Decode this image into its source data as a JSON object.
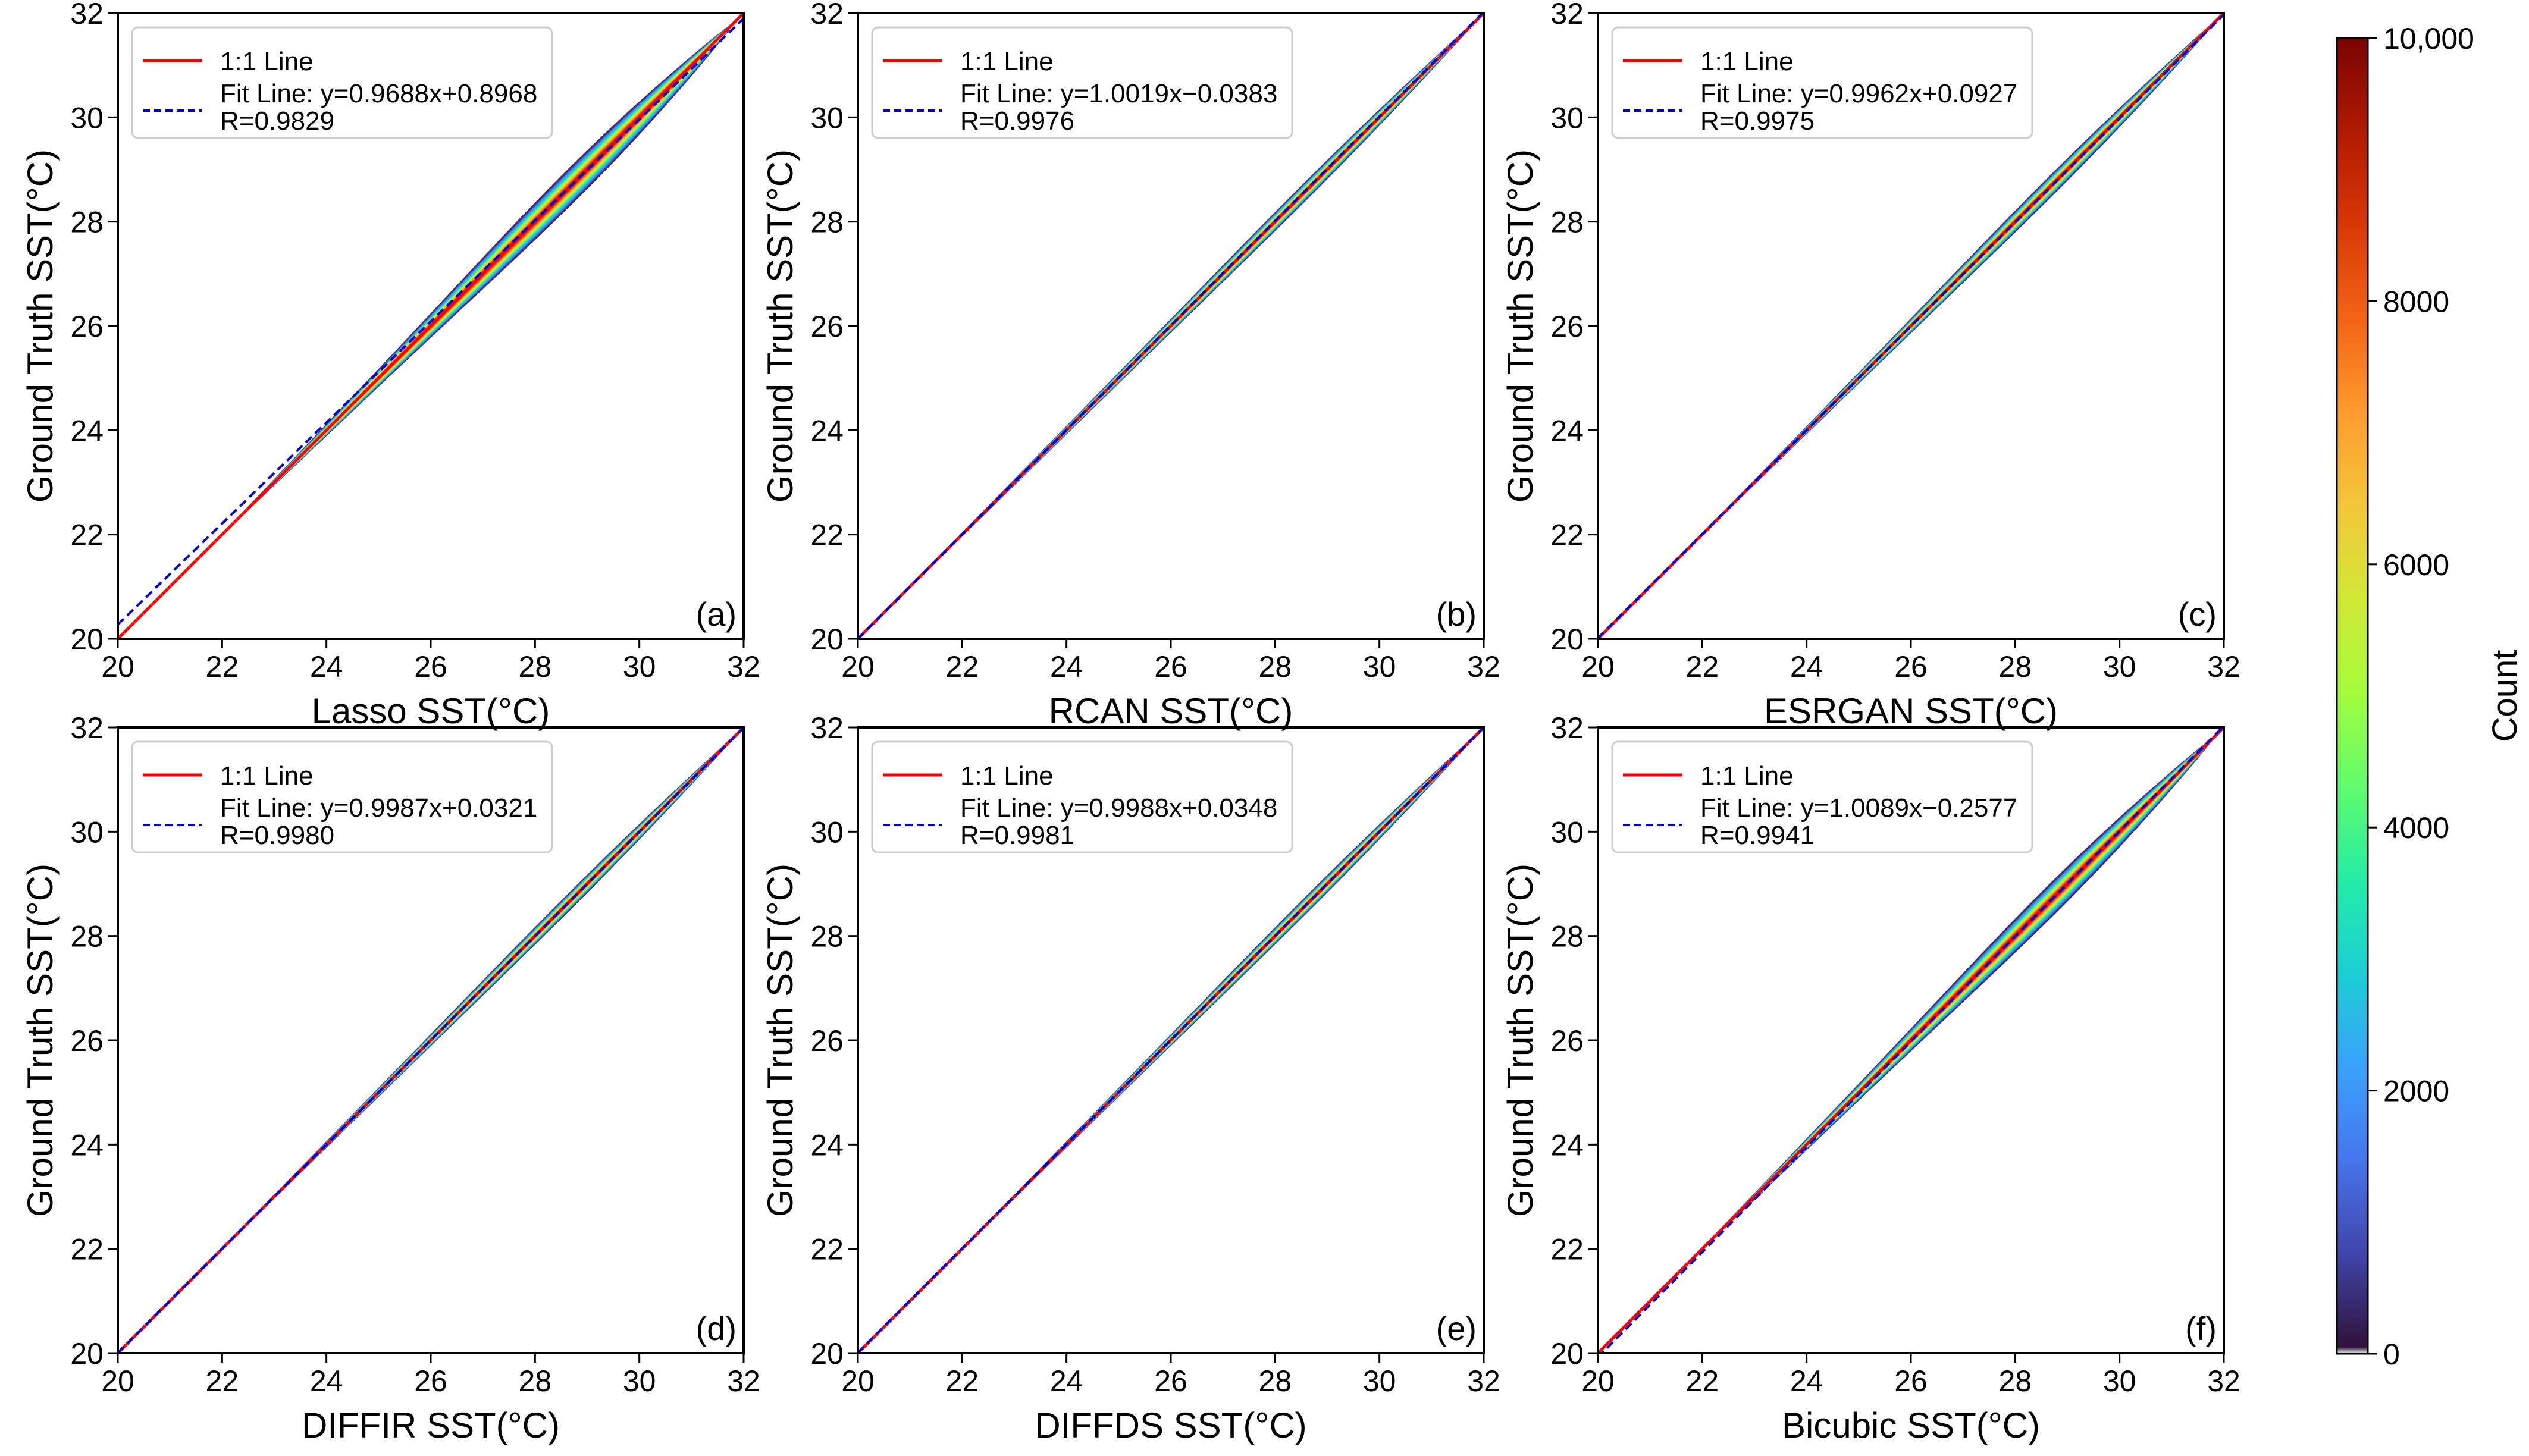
{
  "figure": {
    "colorbar": {
      "label": "Count",
      "min": 0,
      "max": 10000,
      "ticks": [
        {
          "value": 0,
          "label": "0"
        },
        {
          "value": 2000,
          "label": "2000"
        },
        {
          "value": 4000,
          "label": "4000"
        },
        {
          "value": 6000,
          "label": "6000"
        },
        {
          "value": 8000,
          "label": "8000"
        },
        {
          "value": 10000,
          "label": "10,000"
        }
      ],
      "colormap": [
        "#ffffff",
        "#30123b",
        "#4145ab",
        "#4675ed",
        "#39a2fc",
        "#1bcfd4",
        "#24eca6",
        "#61fc6c",
        "#a4fc3b",
        "#d1e834",
        "#f3c63a",
        "#fe9b2d",
        "#f36315",
        "#d93806",
        "#b11901",
        "#7a0402"
      ]
    }
  },
  "chart_data": [
    {
      "type": "heatmap",
      "panel": "(a)",
      "xlabel": "Lasso SST(°C)",
      "ylabel": "Ground Truth SST(°C)",
      "xlim": [
        20,
        32
      ],
      "ylim": [
        20,
        32
      ],
      "xticks": [
        20,
        22,
        24,
        26,
        28,
        30,
        32
      ],
      "yticks": [
        20,
        22,
        24,
        26,
        28,
        30,
        32
      ],
      "legend_position": "upper-left",
      "legend": {
        "line_1to1": "1:1 Line",
        "fit": "Fit Line: y=0.9688x+0.8968",
        "r": "R=0.9829"
      },
      "fit_slope": 0.9688,
      "fit_intercept": 0.8968,
      "density": {
        "x_range": [
          22,
          31.7
        ],
        "max_halfwidth": 0.55,
        "peak_x": 29.6
      }
    },
    {
      "type": "heatmap",
      "panel": "(b)",
      "xlabel": "RCAN SST(°C)",
      "ylabel": "Ground Truth SST(°C)",
      "xlim": [
        20,
        32
      ],
      "ylim": [
        20,
        32
      ],
      "xticks": [
        20,
        22,
        24,
        26,
        28,
        30,
        32
      ],
      "yticks": [
        20,
        22,
        24,
        26,
        28,
        30,
        32
      ],
      "legend_position": "upper-left",
      "legend": {
        "line_1to1": "1:1 Line",
        "fit": "Fit Line: y=1.0019x−0.0383",
        "r": "R=0.9976"
      },
      "fit_slope": 1.0019,
      "fit_intercept": -0.0383,
      "density": {
        "x_range": [
          20.5,
          31.8
        ],
        "max_halfwidth": 0.28,
        "peak_x": 29.6
      }
    },
    {
      "type": "heatmap",
      "panel": "(c)",
      "xlabel": "ESRGAN SST(°C)",
      "ylabel": "Ground Truth SST(°C)",
      "xlim": [
        20,
        32
      ],
      "ylim": [
        20,
        32
      ],
      "xticks": [
        20,
        22,
        24,
        26,
        28,
        30,
        32
      ],
      "yticks": [
        20,
        22,
        24,
        26,
        28,
        30,
        32
      ],
      "legend_position": "upper-left",
      "legend": {
        "line_1to1": "1:1 Line",
        "fit": "Fit Line: y=0.9962x+0.0927",
        "r": "R=0.9975"
      },
      "fit_slope": 0.9962,
      "fit_intercept": 0.0927,
      "density": {
        "x_range": [
          21.5,
          31.8
        ],
        "max_halfwidth": 0.32,
        "peak_x": 29.6
      }
    },
    {
      "type": "heatmap",
      "panel": "(d)",
      "xlabel": "DIFFIR SST(°C)",
      "ylabel": "Ground Truth SST(°C)",
      "xlim": [
        20,
        32
      ],
      "ylim": [
        20,
        32
      ],
      "xticks": [
        20,
        22,
        24,
        26,
        28,
        30,
        32
      ],
      "yticks": [
        20,
        22,
        24,
        26,
        28,
        30,
        32
      ],
      "legend_position": "upper-left",
      "legend": {
        "line_1to1": "1:1 Line",
        "fit": "Fit Line: y=0.9987x+0.0321",
        "r": "R=0.9980"
      },
      "fit_slope": 0.9987,
      "fit_intercept": 0.0321,
      "density": {
        "x_range": [
          21.5,
          31.8
        ],
        "max_halfwidth": 0.26,
        "peak_x": 29.6
      }
    },
    {
      "type": "heatmap",
      "panel": "(e)",
      "xlabel": "DIFFDS SST(°C)",
      "ylabel": "Ground Truth SST(°C)",
      "xlim": [
        20,
        32
      ],
      "ylim": [
        20,
        32
      ],
      "xticks": [
        20,
        22,
        24,
        26,
        28,
        30,
        32
      ],
      "yticks": [
        20,
        22,
        24,
        26,
        28,
        30,
        32
      ],
      "legend_position": "upper-left",
      "legend": {
        "line_1to1": "1:1 Line",
        "fit": "Fit Line: y=0.9988x+0.0348",
        "r": "R=0.9981"
      },
      "fit_slope": 0.9988,
      "fit_intercept": 0.0348,
      "density": {
        "x_range": [
          21.5,
          31.8
        ],
        "max_halfwidth": 0.25,
        "peak_x": 29.6
      }
    },
    {
      "type": "heatmap",
      "panel": "(f)",
      "xlabel": "Bicubic SST(°C)",
      "ylabel": "Ground Truth SST(°C)",
      "xlim": [
        20,
        32
      ],
      "ylim": [
        20,
        32
      ],
      "xticks": [
        20,
        22,
        24,
        26,
        28,
        30,
        32
      ],
      "yticks": [
        20,
        22,
        24,
        26,
        28,
        30,
        32
      ],
      "legend_position": "upper-left",
      "legend": {
        "line_1to1": "1:1 Line",
        "fit": "Fit Line: y=1.0089x−0.2577",
        "r": "R=0.9941"
      },
      "fit_slope": 1.0089,
      "fit_intercept": -0.2577,
      "density": {
        "x_range": [
          21.8,
          31.7
        ],
        "max_halfwidth": 0.5,
        "peak_x": 29.6
      }
    }
  ]
}
